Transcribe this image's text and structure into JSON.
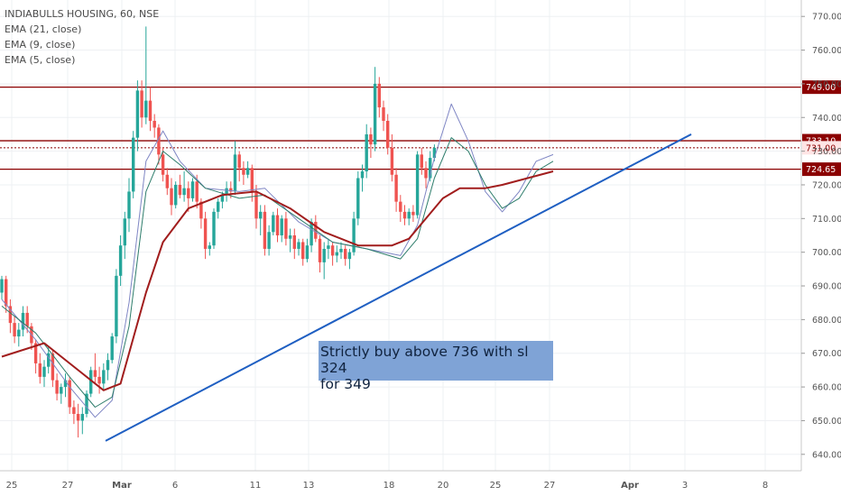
{
  "legend": {
    "symbol": "INDIABULLS HOUSING, 60, NSE",
    "ema21": "EMA (21, close)",
    "ema9": "EMA (9, close)",
    "ema5": "EMA (5, close)"
  },
  "note": {
    "line1": "Strictly buy above 736 with sl 324",
    "line2": "for 349"
  },
  "colors": {
    "up": "#26a69a",
    "down": "#ef5350",
    "ema21": "#a11d1d",
    "ema9": "#2e7d6b",
    "ema5": "#7f86c4",
    "level": "#8b0000",
    "trend": "#1f5fc2",
    "note_bg": "#7fa3d6"
  },
  "chart_data": {
    "type": "candlestick",
    "y_axis": {
      "ticks": [
        "770.00",
        "760.00",
        "750.00",
        "740.00",
        "730.00",
        "720.00",
        "710.00",
        "700.00",
        "690.00",
        "680.00",
        "670.00",
        "660.00",
        "650.00",
        "640.00"
      ],
      "tick_values": [
        770,
        760,
        750,
        740,
        730,
        720,
        710,
        700,
        690,
        680,
        670,
        660,
        650,
        640
      ],
      "range": [
        637,
        773
      ],
      "grid": true
    },
    "x_axis": {
      "ticks": [
        "25",
        "27",
        "Mar",
        "6",
        "11",
        "13",
        "18",
        "20",
        "25",
        "27",
        "Apr",
        "3",
        "8"
      ]
    },
    "horizontal_levels": [
      {
        "label": "749.00",
        "value": 749.0
      },
      {
        "label": "733.10",
        "value": 733.1
      },
      {
        "label": "731.00",
        "value": 731.0,
        "style": "dotted"
      },
      {
        "label": "724.65",
        "value": 724.65
      }
    ],
    "trendline": {
      "from": {
        "bar": 18,
        "price": 644
      },
      "to": {
        "bar": 124,
        "price": 735
      }
    },
    "candles": [
      [
        688,
        693,
        686,
        692
      ],
      [
        692,
        693,
        682,
        684
      ],
      [
        684,
        686,
        676,
        679
      ],
      [
        679,
        681,
        673,
        675
      ],
      [
        675,
        679,
        672,
        677
      ],
      [
        677,
        684,
        675,
        682
      ],
      [
        682,
        684,
        676,
        678
      ],
      [
        678,
        679,
        671,
        673
      ],
      [
        673,
        674,
        664,
        667
      ],
      [
        667,
        670,
        661,
        663
      ],
      [
        663,
        668,
        660,
        666
      ],
      [
        666,
        672,
        664,
        670
      ],
      [
        670,
        671,
        660,
        662
      ],
      [
        662,
        664,
        656,
        658
      ],
      [
        658,
        661,
        655,
        660
      ],
      [
        660,
        664,
        657,
        662
      ],
      [
        662,
        663,
        652,
        654
      ],
      [
        654,
        656,
        649,
        652
      ],
      [
        652,
        655,
        645,
        650
      ],
      [
        650,
        654,
        646,
        652
      ],
      [
        652,
        659,
        651,
        658
      ],
      [
        658,
        666,
        657,
        665
      ],
      [
        665,
        670,
        661,
        663
      ],
      [
        663,
        666,
        658,
        661
      ],
      [
        661,
        667,
        659,
        665
      ],
      [
        665,
        670,
        662,
        668
      ],
      [
        668,
        676,
        667,
        675
      ],
      [
        675,
        695,
        673,
        693
      ],
      [
        693,
        705,
        690,
        702
      ],
      [
        702,
        712,
        698,
        710
      ],
      [
        710,
        722,
        706,
        718
      ],
      [
        718,
        736,
        716,
        734
      ],
      [
        734,
        751,
        730,
        748
      ],
      [
        748,
        751,
        737,
        740
      ],
      [
        740,
        767,
        738,
        745
      ],
      [
        745,
        749,
        736,
        739
      ],
      [
        739,
        741,
        734,
        737
      ],
      [
        737,
        738,
        726,
        729
      ],
      [
        729,
        731,
        721,
        723
      ],
      [
        723,
        725,
        717,
        719
      ],
      [
        719,
        722,
        711,
        714
      ],
      [
        714,
        721,
        713,
        720
      ],
      [
        720,
        723,
        716,
        717
      ],
      [
        717,
        724,
        715,
        719
      ],
      [
        719,
        721,
        712,
        716
      ],
      [
        716,
        722,
        715,
        721
      ],
      [
        721,
        723,
        713,
        715
      ],
      [
        715,
        716,
        707,
        710
      ],
      [
        710,
        712,
        698,
        701
      ],
      [
        701,
        703,
        699,
        702
      ],
      [
        702,
        713,
        701,
        712
      ],
      [
        712,
        716,
        710,
        715
      ],
      [
        715,
        718,
        713,
        717
      ],
      [
        717,
        721,
        715,
        719
      ],
      [
        719,
        721,
        716,
        718
      ],
      [
        718,
        733,
        717,
        729
      ],
      [
        729,
        730,
        721,
        725
      ],
      [
        725,
        727,
        720,
        723
      ],
      [
        723,
        727,
        722,
        725
      ],
      [
        725,
        726,
        715,
        718
      ],
      [
        718,
        720,
        707,
        710
      ],
      [
        710,
        714,
        705,
        712
      ],
      [
        712,
        714,
        699,
        701
      ],
      [
        701,
        708,
        699,
        706
      ],
      [
        706,
        712,
        705,
        711
      ],
      [
        711,
        713,
        703,
        705
      ],
      [
        705,
        711,
        703,
        710
      ],
      [
        710,
        712,
        702,
        704
      ],
      [
        704,
        707,
        700,
        705
      ],
      [
        705,
        707,
        698,
        701
      ],
      [
        701,
        704,
        699,
        703
      ],
      [
        703,
        704,
        696,
        698
      ],
      [
        698,
        704,
        697,
        702
      ],
      [
        702,
        710,
        700,
        709
      ],
      [
        709,
        711,
        703,
        704
      ],
      [
        704,
        705,
        694,
        697
      ],
      [
        697,
        703,
        692,
        701
      ],
      [
        701,
        704,
        698,
        702
      ],
      [
        702,
        703,
        696,
        699
      ],
      [
        699,
        702,
        697,
        700
      ],
      [
        700,
        703,
        698,
        701
      ],
      [
        701,
        702,
        696,
        698
      ],
      [
        698,
        701,
        695,
        700
      ],
      [
        700,
        712,
        699,
        710
      ],
      [
        710,
        724,
        708,
        722
      ],
      [
        722,
        726,
        718,
        724
      ],
      [
        724,
        738,
        722,
        735
      ],
      [
        735,
        737,
        728,
        732
      ],
      [
        732,
        755,
        730,
        750
      ],
      [
        750,
        752,
        740,
        743
      ],
      [
        743,
        745,
        736,
        739
      ],
      [
        739,
        741,
        729,
        731
      ],
      [
        731,
        735,
        721,
        723
      ],
      [
        723,
        725,
        712,
        715
      ],
      [
        715,
        717,
        709,
        712
      ],
      [
        712,
        714,
        708,
        710
      ],
      [
        710,
        713,
        708,
        712
      ],
      [
        712,
        714,
        709,
        711
      ],
      [
        711,
        730,
        710,
        729
      ],
      [
        729,
        731,
        723,
        725
      ],
      [
        725,
        727,
        719,
        722
      ],
      [
        722,
        730,
        721,
        728
      ],
      [
        728,
        732,
        727,
        731
      ]
    ],
    "ema21": [
      [
        0,
        669
      ],
      [
        10,
        673
      ],
      [
        18,
        665
      ],
      [
        24,
        659
      ],
      [
        28,
        661
      ],
      [
        34,
        688
      ],
      [
        38,
        703
      ],
      [
        44,
        713
      ],
      [
        52,
        717
      ],
      [
        60,
        718
      ],
      [
        68,
        713
      ],
      [
        76,
        706
      ],
      [
        84,
        702
      ],
      [
        92,
        702
      ],
      [
        96,
        704
      ],
      [
        104,
        716
      ],
      [
        108,
        719
      ],
      [
        114,
        719
      ],
      [
        118,
        720
      ],
      [
        124,
        722
      ],
      [
        130,
        724
      ]
    ],
    "ema9": [
      [
        0,
        684
      ],
      [
        8,
        676
      ],
      [
        16,
        663
      ],
      [
        22,
        654
      ],
      [
        26,
        657
      ],
      [
        30,
        678
      ],
      [
        34,
        718
      ],
      [
        38,
        730
      ],
      [
        42,
        726
      ],
      [
        48,
        719
      ],
      [
        56,
        716
      ],
      [
        62,
        717
      ],
      [
        70,
        710
      ],
      [
        78,
        703
      ],
      [
        86,
        701
      ],
      [
        94,
        698
      ],
      [
        98,
        704
      ],
      [
        102,
        722
      ],
      [
        106,
        734
      ],
      [
        110,
        730
      ],
      [
        114,
        720
      ],
      [
        118,
        713
      ],
      [
        122,
        716
      ],
      [
        126,
        724
      ],
      [
        130,
        727
      ]
    ],
    "ema5": [
      [
        0,
        686
      ],
      [
        8,
        674
      ],
      [
        16,
        660
      ],
      [
        22,
        651
      ],
      [
        26,
        656
      ],
      [
        30,
        685
      ],
      [
        34,
        727
      ],
      [
        38,
        736
      ],
      [
        42,
        727
      ],
      [
        48,
        719
      ],
      [
        56,
        718
      ],
      [
        62,
        719
      ],
      [
        70,
        709
      ],
      [
        78,
        703
      ],
      [
        86,
        701
      ],
      [
        94,
        699
      ],
      [
        98,
        708
      ],
      [
        102,
        728
      ],
      [
        106,
        744
      ],
      [
        110,
        733
      ],
      [
        114,
        718
      ],
      [
        118,
        712
      ],
      [
        122,
        718
      ],
      [
        126,
        727
      ],
      [
        130,
        729
      ]
    ]
  }
}
